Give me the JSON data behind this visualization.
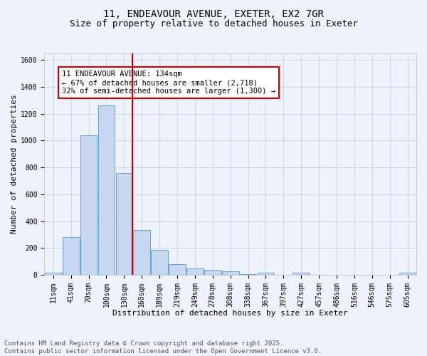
{
  "title_line1": "11, ENDEAVOUR AVENUE, EXETER, EX2 7GR",
  "title_line2": "Size of property relative to detached houses in Exeter",
  "xlabel": "Distribution of detached houses by size in Exeter",
  "ylabel": "Number of detached properties",
  "categories": [
    "11sqm",
    "41sqm",
    "70sqm",
    "100sqm",
    "130sqm",
    "160sqm",
    "189sqm",
    "219sqm",
    "249sqm",
    "278sqm",
    "308sqm",
    "338sqm",
    "367sqm",
    "397sqm",
    "427sqm",
    "457sqm",
    "486sqm",
    "516sqm",
    "546sqm",
    "575sqm",
    "605sqm"
  ],
  "values": [
    15,
    280,
    1040,
    1265,
    760,
    335,
    185,
    80,
    45,
    35,
    25,
    5,
    15,
    0,
    15,
    0,
    0,
    0,
    0,
    0,
    15
  ],
  "bar_color": "#c5d8f0",
  "bar_edge_color": "#5a96cc",
  "vline_color": "#cc0000",
  "annotation_text": "11 ENDEAVOUR AVENUE: 134sqm\n← 67% of detached houses are smaller (2,718)\n32% of semi-detached houses are larger (1,300) →",
  "annotation_box_color": "#ffffff",
  "annotation_box_edge_color": "#cc0000",
  "ylim": [
    0,
    1650
  ],
  "yticks": [
    0,
    200,
    400,
    600,
    800,
    1000,
    1200,
    1400,
    1600
  ],
  "grid_color": "#c8d4e8",
  "background_color": "#eef2fa",
  "footer_line1": "Contains HM Land Registry data © Crown copyright and database right 2025.",
  "footer_line2": "Contains public sector information licensed under the Open Government Licence v3.0.",
  "title_fontsize": 10,
  "subtitle_fontsize": 9,
  "axis_label_fontsize": 8,
  "tick_fontsize": 7,
  "annotation_fontsize": 7.5,
  "footer_fontsize": 6.5
}
